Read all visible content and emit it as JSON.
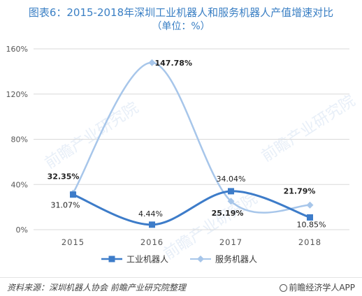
{
  "title": "图表6：2015-2018年深圳工业机器人和服务机器人产值增速对比",
  "subtitle": "（单位：%）",
  "source_text": "资料来源：深圳机器人协会  前瞻产业研究院整理",
  "brand_text": "前瞻经济学人APP",
  "watermark_text": "前瞻产业研究院",
  "colors": {
    "industrial": "#3d7cc9",
    "service": "#a7c6ea",
    "title": "#3a7fc4",
    "grid": "#d9d9d9"
  },
  "chart_data": {
    "type": "line",
    "categories": [
      "2015",
      "2016",
      "2017",
      "2018"
    ],
    "ylim": [
      0,
      160
    ],
    "yticks": [
      0,
      40,
      80,
      120,
      160
    ],
    "ytick_labels": [
      "0%",
      "40%",
      "80%",
      "120%",
      "160%"
    ],
    "grid": "horizontal",
    "legend_position": "bottom",
    "series": [
      {
        "name": "工业机器人",
        "values": [
          31.07,
          4.44,
          34.04,
          10.85
        ],
        "labels": [
          "31.07%",
          "4.44%",
          "34.04%",
          "10.85%"
        ],
        "marker": "square"
      },
      {
        "name": "服务机器人",
        "values": [
          32.35,
          147.78,
          25.19,
          21.79
        ],
        "labels": [
          "32.35%",
          "147.78%",
          "25.19%",
          "21.79%"
        ],
        "marker": "diamond"
      }
    ]
  }
}
